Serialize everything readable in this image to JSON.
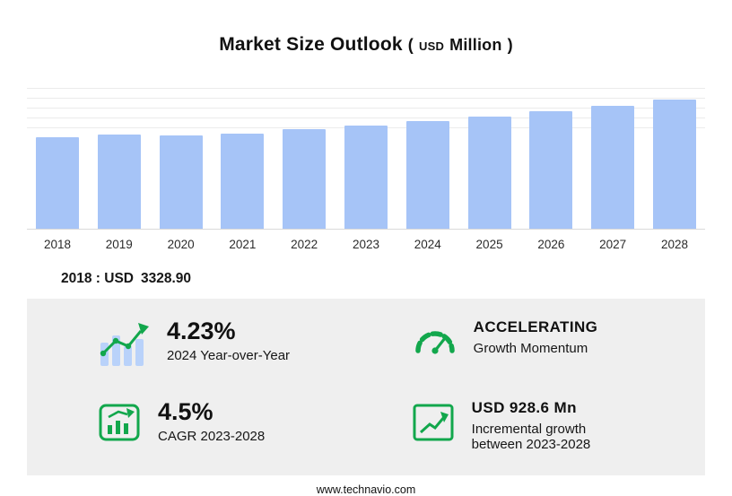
{
  "page": {
    "title": "Market Size Outlook",
    "title_unit_open": "(",
    "title_unit_currency": "USD",
    "title_unit_scale": "Million",
    "title_unit_close": ")",
    "footer": "www.technavio.com"
  },
  "annotation": {
    "label": "2018 : USD",
    "value": "3328.90"
  },
  "chart_data": {
    "type": "bar",
    "title": "Market Size Outlook (USD Million)",
    "categories": [
      "2018",
      "2019",
      "2020",
      "2021",
      "2022",
      "2023",
      "2024",
      "2025",
      "2026",
      "2027",
      "2028"
    ],
    "values": [
      3328.9,
      3450,
      3390,
      3480,
      3620,
      3772,
      3931.5,
      4100,
      4280,
      4480,
      4700.6
    ],
    "xlabel": "",
    "ylabel": "",
    "ylim": [
      0,
      5200
    ],
    "grid": true,
    "legend": "none",
    "bar_color": "#a6c4f7"
  },
  "stats": [
    {
      "id": "yoy",
      "value": "4.23%",
      "label": "2024 Year-over-Year",
      "icon": "bar-growth-icon"
    },
    {
      "id": "momentum",
      "value": "ACCELERATING",
      "label": "Growth Momentum",
      "icon": "speedometer-icon"
    },
    {
      "id": "cagr",
      "value": "4.5%",
      "label": "CAGR 2023-2028",
      "icon": "chart-window-icon"
    },
    {
      "id": "incremental",
      "value": "USD 928.6 Mn",
      "label": "Incremental growth between 2023-2028",
      "icon": "step-growth-icon"
    }
  ],
  "colors": {
    "accent_green": "#12a74c",
    "bar_blue": "#a6c4f7",
    "panel_gray": "#efefef"
  }
}
